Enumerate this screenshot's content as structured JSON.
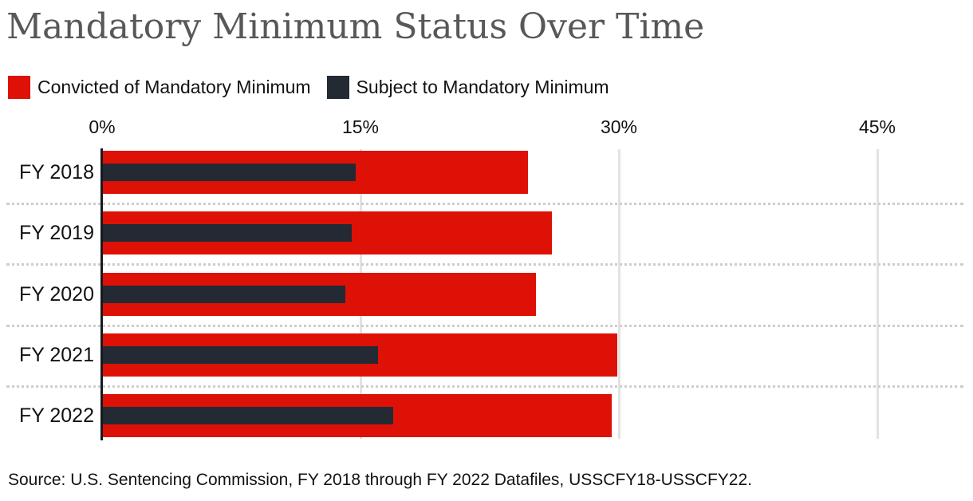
{
  "title": "Mandatory Minimum Status Over Time",
  "legend": [
    {
      "label": "Convicted of Mandatory Minimum",
      "color": "#de1106",
      "swatch_icon": "red-square-swatch"
    },
    {
      "label": "Subject to Mandatory Minimum",
      "color": "#232a34",
      "swatch_icon": "navy-square-swatch"
    }
  ],
  "source_note": "Source: U.S. Sentencing Commission, FY 2018 through FY 2022 Datafiles, USSCFY18-USSCFY22.",
  "colors": {
    "title_text": "#58585a",
    "body_text": "#121212",
    "convicted_bar": "#de1106",
    "subject_bar": "#232a34",
    "vertical_gridline": "#e3e3e3",
    "row_separator_dotted": "#cdcdcd",
    "axis_line": "#16191d",
    "background": "#ffffff"
  },
  "chart_data": {
    "type": "bar",
    "orientation": "horizontal",
    "title": "Mandatory Minimum Status Over Time",
    "xlabel": "",
    "ylabel": "",
    "categories": [
      "FY 2018",
      "FY 2019",
      "FY 2020",
      "FY 2021",
      "FY 2022"
    ],
    "series": [
      {
        "name": "Convicted of Mandatory Minimum",
        "color": "#de1106",
        "values": [
          24.7,
          26.1,
          25.2,
          29.9,
          29.6
        ]
      },
      {
        "name": "Subject to Mandatory Minimum",
        "color": "#232a34",
        "values": [
          14.7,
          14.5,
          14.1,
          16.0,
          16.9
        ]
      }
    ],
    "x_ticks": [
      "0%",
      "15%",
      "30%",
      "45%"
    ],
    "x_tick_values": [
      0,
      15,
      30,
      45
    ],
    "xlim": [
      0,
      50
    ],
    "grid": "vertical solid gridlines at ticks; dotted horizontal separators between category rows",
    "legend_position": "top-left",
    "bar_style": "subject bar nested inside convicted bar"
  }
}
